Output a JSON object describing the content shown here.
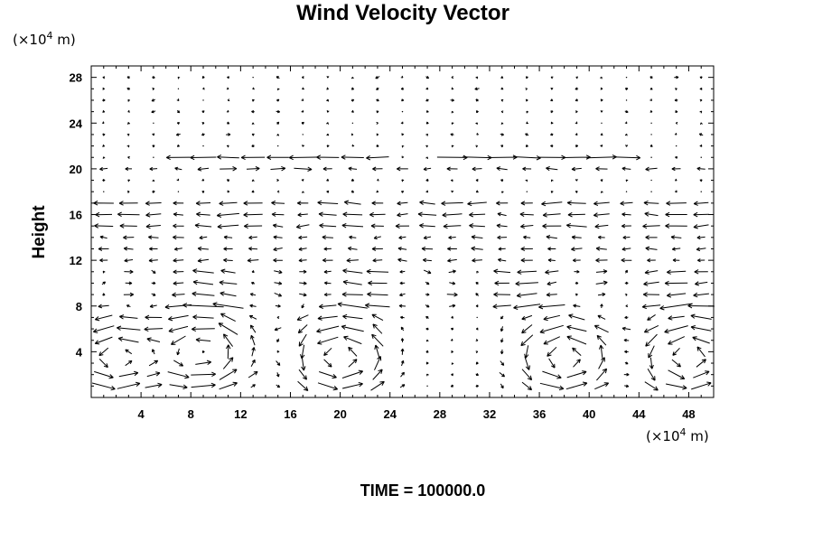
{
  "chart_data": {
    "type": "vector_field",
    "title": "Wind Velocity Vector",
    "ylabel": "Height",
    "xunit": "(×10",
    "xunit_exp": "4",
    "xunit_tail": " m)",
    "yunit": "(×10",
    "yunit_exp": "4",
    "yunit_tail": " m)",
    "xlim": [
      0,
      50
    ],
    "ylim": [
      0,
      29
    ],
    "xticks": [
      "4",
      "8",
      "12",
      "16",
      "20",
      "24",
      "28",
      "32",
      "36",
      "40",
      "44",
      "48"
    ],
    "yticks": [
      "4",
      "8",
      "12",
      "16",
      "20",
      "24",
      "28"
    ],
    "grid_x_spacing": 2,
    "grid_y_spacing": 1,
    "jets": [
      {
        "y": 21,
        "x_range": [
          6,
          44
        ],
        "direction": "mixed"
      },
      {
        "y": 16,
        "x_range": [
          0,
          50
        ],
        "direction": "west"
      },
      {
        "y": 8.5,
        "x_range": [
          0,
          50
        ],
        "direction": "mixed"
      }
    ],
    "eddies": [
      {
        "x": 2,
        "y": 3.5
      },
      {
        "x": 9,
        "y": 4
      },
      {
        "x": 20,
        "y": 3.5
      },
      {
        "x": 38,
        "y": 3.5
      },
      {
        "x": 48,
        "y": 3.5
      }
    ]
  },
  "footer": {
    "label": "TIME = 100000.0"
  }
}
